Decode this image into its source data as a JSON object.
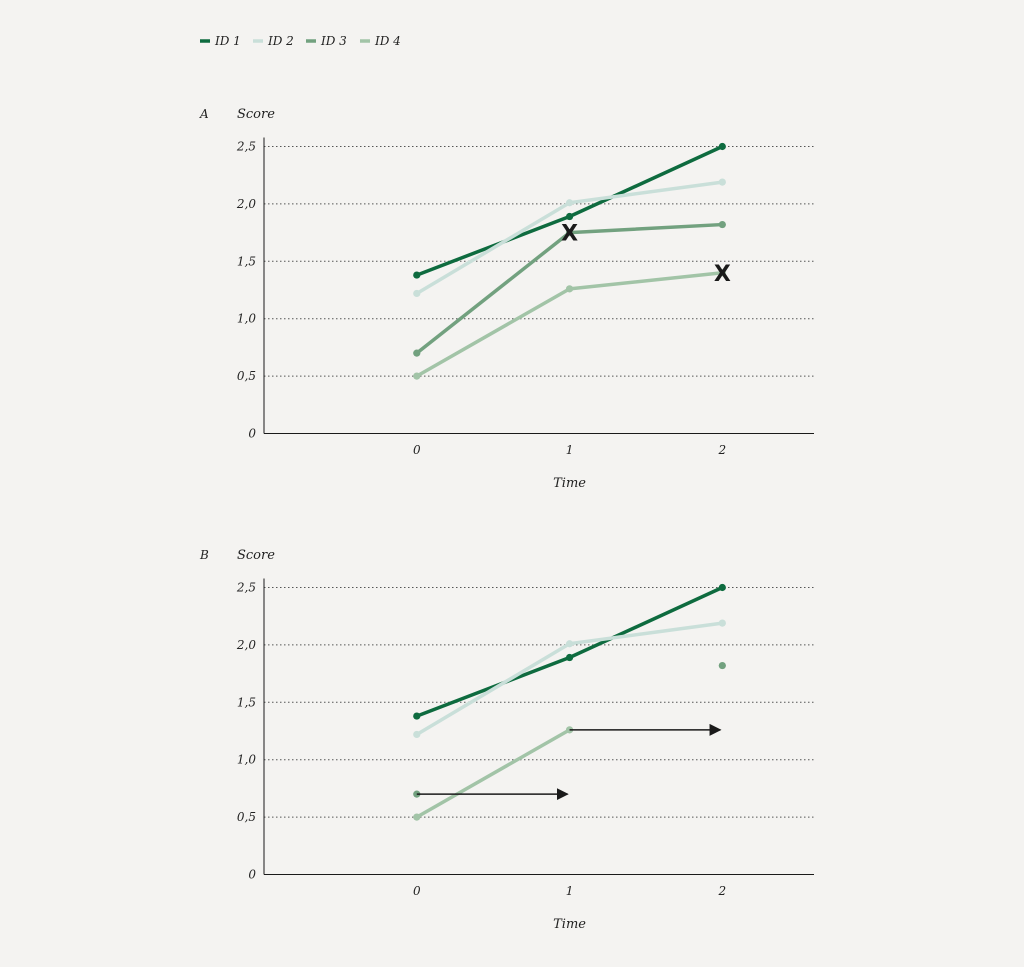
{
  "chart_data": {
    "type": "line",
    "legend": {
      "placement": "top-left",
      "entries": [
        {
          "name": "ID 1",
          "color": "#0e6b3f"
        },
        {
          "name": "ID 2",
          "color": "#c9dfd9"
        },
        {
          "name": "ID 3",
          "color": "#72a17f"
        },
        {
          "name": "ID 4",
          "color": "#a2c4a7"
        }
      ]
    },
    "panels": [
      {
        "label": "A",
        "ylabel": "Score",
        "xlabel": "Time",
        "x_ticks": [
          "0",
          "1",
          "2"
        ],
        "y_ticks": [
          "0",
          "0,5",
          "1,0",
          "1,5",
          "2,0",
          "2,5"
        ],
        "y_tick_values": [
          0,
          0.5,
          1.0,
          1.5,
          2.0,
          2.5
        ],
        "xlim": [
          -1,
          2.6
        ],
        "ylim": [
          0,
          2.5
        ],
        "grid": "horizontal-dotted",
        "series": [
          {
            "name": "ID 1",
            "color": "#0e6b3f",
            "points": [
              [
                0,
                1.38
              ],
              [
                1,
                1.89
              ],
              [
                2,
                2.5
              ]
            ]
          },
          {
            "name": "ID 2",
            "color": "#c9dfd9",
            "points": [
              [
                0,
                1.22
              ],
              [
                1,
                2.01
              ],
              [
                2,
                2.19
              ]
            ]
          },
          {
            "name": "ID 3",
            "color": "#72a17f",
            "points": [
              [
                0,
                0.7
              ],
              [
                1,
                1.75
              ],
              [
                2,
                1.82
              ]
            ]
          },
          {
            "name": "ID 4",
            "color": "#a2c4a7",
            "points": [
              [
                0,
                0.5
              ],
              [
                1,
                1.26
              ],
              [
                2,
                1.4
              ]
            ]
          }
        ],
        "x_markers": [
          {
            "symbol": "X",
            "x": 1,
            "y": 1.75
          },
          {
            "symbol": "X",
            "x": 2,
            "y": 1.4
          }
        ],
        "arrows": []
      },
      {
        "label": "B",
        "ylabel": "Score",
        "xlabel": "Time",
        "x_ticks": [
          "0",
          "1",
          "2"
        ],
        "y_ticks": [
          "0",
          "0,5",
          "1,0",
          "1,5",
          "2,0",
          "2,5"
        ],
        "y_tick_values": [
          0,
          0.5,
          1.0,
          1.5,
          2.0,
          2.5
        ],
        "xlim": [
          -1,
          2.6
        ],
        "ylim": [
          0,
          2.5
        ],
        "grid": "horizontal-dotted",
        "series": [
          {
            "name": "ID 1",
            "color": "#0e6b3f",
            "points": [
              [
                0,
                1.38
              ],
              [
                1,
                1.89
              ],
              [
                2,
                2.5
              ]
            ]
          },
          {
            "name": "ID 2",
            "color": "#c9dfd9",
            "points": [
              [
                0,
                1.22
              ],
              [
                1,
                2.01
              ],
              [
                2,
                2.19
              ]
            ]
          },
          {
            "name": "ID 3",
            "color": "#72a17f",
            "points": [
              [
                0,
                0.7
              ],
              [
                2,
                1.82
              ]
            ],
            "connect": false
          },
          {
            "name": "ID 4",
            "color": "#a2c4a7",
            "points": [
              [
                0,
                0.5
              ],
              [
                1,
                1.26
              ]
            ]
          }
        ],
        "x_markers": [],
        "arrows": [
          {
            "from": [
              0,
              0.7
            ],
            "to": [
              1,
              0.7
            ],
            "color": "#1a1a1a"
          },
          {
            "from": [
              1,
              1.26
            ],
            "to": [
              2,
              1.26
            ],
            "color": "#1a1a1a"
          }
        ]
      }
    ]
  }
}
